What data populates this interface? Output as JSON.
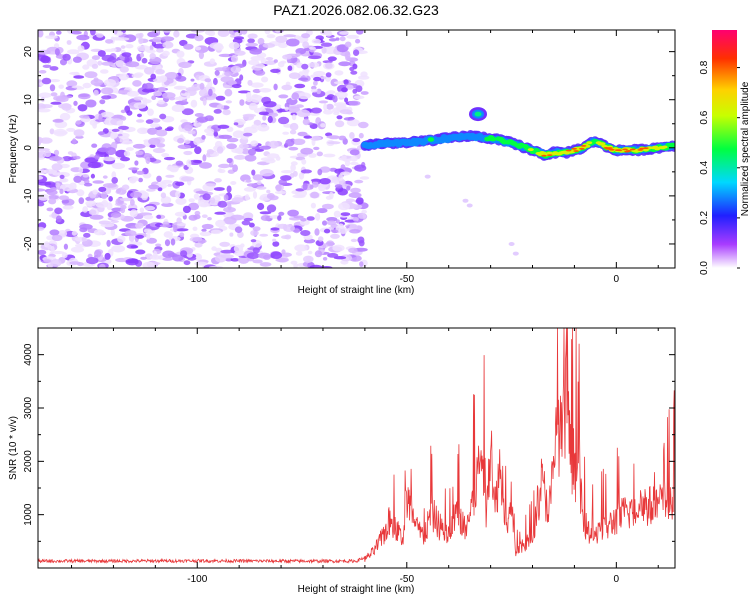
{
  "chart_data": [
    {
      "type": "heatmap",
      "title": "PAZ1.2026.082.06.32.G23",
      "xlabel": "Height of straight line (km)",
      "ylabel": "Frequency (Hz)",
      "xlim": [
        -138,
        14
      ],
      "ylim": [
        -25,
        24.5
      ],
      "xticks": [
        -100,
        -50,
        0
      ],
      "yticks": [
        -20,
        -10,
        0,
        10,
        20
      ],
      "noise_region_x": [
        -138,
        -60
      ],
      "signal_track": {
        "x": [
          -60,
          -55,
          -50,
          -45,
          -40,
          -35,
          -30,
          -25,
          -20,
          -17,
          -15,
          -12,
          -8,
          -5,
          -2,
          0,
          5,
          10,
          14
        ],
        "freq": [
          0.5,
          1,
          1,
          1.5,
          2,
          2.5,
          2,
          1,
          -0.5,
          -1.5,
          -1,
          -1,
          0,
          1.5,
          0,
          -0.5,
          -0.5,
          0,
          0.5
        ],
        "amplitude": [
          0.3,
          0.35,
          0.4,
          0.45,
          0.4,
          0.35,
          0.5,
          0.55,
          0.6,
          0.9,
          0.75,
          0.8,
          0.9,
          0.6,
          0.95,
          0.9,
          0.85,
          0.75,
          0.6
        ]
      },
      "secondary_blob": {
        "x": -33,
        "freq": 7,
        "amplitude": 0.3
      },
      "faint_dots": [
        {
          "x": -45,
          "freq": -6
        },
        {
          "x": -36,
          "freq": -11
        },
        {
          "x": -35,
          "freq": -12
        },
        {
          "x": -25,
          "freq": -20
        },
        {
          "x": -24,
          "freq": -22
        }
      ]
    },
    {
      "type": "colorbar",
      "label": "Normalized spectral amplitude",
      "range": [
        0,
        0.95
      ],
      "ticks": [
        0.0,
        0.2,
        0.4,
        0.6,
        0.8
      ],
      "tick_labels": [
        "0.0",
        "0.2",
        "0.4",
        "0.6",
        "0.8"
      ]
    },
    {
      "type": "line",
      "title": "",
      "xlabel": "Height of straight line (km)",
      "ylabel": "SNR (10 * v/v)",
      "xlim": [
        -138,
        14
      ],
      "ylim": [
        0,
        4500
      ],
      "xticks": [
        -100,
        -50,
        0
      ],
      "yticks": [
        1000,
        2000,
        3000,
        4000
      ],
      "series": [
        {
          "name": "SNR",
          "color": "#e8383a",
          "x": [
            -138,
            -120,
            -100,
            -80,
            -62,
            -60,
            -58,
            -56,
            -54,
            -52,
            -51,
            -50,
            -48,
            -46,
            -44,
            -42,
            -40,
            -38,
            -36,
            -34,
            -32,
            -31,
            -30,
            -29,
            -28,
            -27,
            -26,
            -25,
            -24,
            -22,
            -20,
            -18,
            -16,
            -15,
            -14,
            -13,
            -12,
            -11,
            -10,
            -9,
            -8,
            -7,
            -5,
            -4,
            -3,
            -2,
            0,
            2,
            4,
            6,
            8,
            10,
            12,
            14
          ],
          "y": [
            130,
            130,
            135,
            130,
            130,
            200,
            350,
            650,
            1050,
            800,
            600,
            1600,
            900,
            700,
            1200,
            900,
            700,
            1300,
            800,
            1600,
            2600,
            1000,
            3200,
            1200,
            2200,
            1800,
            700,
            1500,
            350,
            500,
            700,
            1900,
            1300,
            2100,
            3300,
            2700,
            3700,
            2500,
            2300,
            2100,
            1100,
            850,
            650,
            1000,
            900,
            900,
            1100,
            1200,
            1300,
            1450,
            1350,
            1400,
            1500,
            1550
          ]
        }
      ]
    }
  ]
}
